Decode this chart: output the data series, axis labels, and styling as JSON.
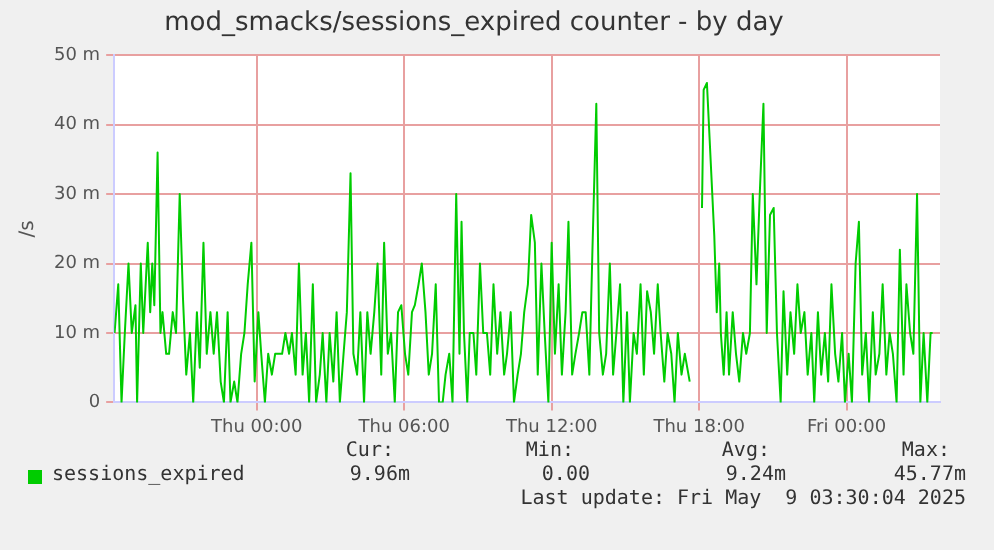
{
  "chart_data": {
    "type": "line",
    "title": "mod_smacks/sessions_expired counter - by day",
    "ylabel": "/s",
    "x": [
      "2025-05-07T18:13",
      "2025-05-07T18:22",
      "2025-05-07T18:30",
      "2025-05-07T18:38",
      "2025-05-07T18:47",
      "2025-05-07T18:55",
      "2025-05-07T19:04",
      "2025-05-07T19:08",
      "2025-05-07T19:17",
      "2025-05-07T19:23",
      "2025-05-07T19:34",
      "2025-05-07T19:40",
      "2025-05-07T19:45",
      "2025-05-07T19:50",
      "2025-05-07T19:58",
      "2025-05-07T20:05",
      "2025-05-07T20:10",
      "2025-05-07T20:19",
      "2025-05-07T20:26",
      "2025-05-07T20:35",
      "2025-05-07T20:43",
      "2025-05-07T20:52",
      "2025-05-07T21:00",
      "2025-05-07T21:08",
      "2025-05-07T21:17",
      "2025-05-07T21:25",
      "2025-05-07T21:34",
      "2025-05-07T21:41",
      "2025-05-07T21:50",
      "2025-05-07T21:58",
      "2025-05-07T22:07",
      "2025-05-07T22:15",
      "2025-05-07T22:23",
      "2025-05-07T22:32",
      "2025-05-07T22:40",
      "2025-05-07T22:49",
      "2025-05-07T22:56",
      "2025-05-07T23:05",
      "2025-05-07T23:13",
      "2025-05-07T23:22",
      "2025-05-07T23:30",
      "2025-05-07T23:38",
      "2025-05-07T23:47",
      "2025-05-07T23:55",
      "2025-05-08T00:04",
      "2025-05-08T00:11",
      "2025-05-08T00:20",
      "2025-05-08T00:28",
      "2025-05-08T00:37",
      "2025-05-08T00:45",
      "2025-05-08T00:53",
      "2025-05-08T01:02",
      "2025-05-08T01:10",
      "2025-05-08T01:19",
      "2025-05-08T01:26",
      "2025-05-08T01:35",
      "2025-05-08T01:43",
      "2025-05-08T01:52",
      "2025-05-08T02:00",
      "2025-05-08T02:08",
      "2025-05-08T02:17",
      "2025-05-08T02:25",
      "2025-05-08T02:34",
      "2025-05-08T02:41",
      "2025-05-08T02:50",
      "2025-05-08T02:58",
      "2025-05-08T03:07",
      "2025-05-08T03:15",
      "2025-05-08T03:23",
      "2025-05-08T03:32",
      "2025-05-08T03:40",
      "2025-05-08T03:49",
      "2025-05-08T03:56",
      "2025-05-08T04:05",
      "2025-05-08T04:13",
      "2025-05-08T04:22",
      "2025-05-08T04:30",
      "2025-05-08T04:38",
      "2025-05-08T04:47",
      "2025-05-08T04:55",
      "2025-05-08T05:04",
      "2025-05-08T05:11",
      "2025-05-08T05:20",
      "2025-05-08T05:28",
      "2025-05-08T05:37",
      "2025-05-08T05:45",
      "2025-05-08T05:53",
      "2025-05-08T06:02",
      "2025-05-08T06:10",
      "2025-05-08T06:19",
      "2025-05-08T06:26",
      "2025-05-08T06:35",
      "2025-05-08T06:43",
      "2025-05-08T06:52",
      "2025-05-08T07:00",
      "2025-05-08T07:08",
      "2025-05-08T07:17",
      "2025-05-08T07:25",
      "2025-05-08T07:34",
      "2025-05-08T07:41",
      "2025-05-08T07:50",
      "2025-05-08T07:58",
      "2025-05-08T08:07",
      "2025-05-08T08:15",
      "2025-05-08T08:20",
      "2025-05-08T08:26",
      "2025-05-08T08:34",
      "2025-05-08T08:40",
      "2025-05-08T08:49",
      "2025-05-08T08:56",
      "2025-05-08T09:05",
      "2025-05-08T09:13",
      "2025-05-08T09:22",
      "2025-05-08T09:30",
      "2025-05-08T09:38",
      "2025-05-08T09:47",
      "2025-05-08T09:55",
      "2025-05-08T10:04",
      "2025-05-08T10:11",
      "2025-05-08T10:20",
      "2025-05-08T10:28",
      "2025-05-08T10:37",
      "2025-05-08T10:45",
      "2025-05-08T10:53",
      "2025-05-08T11:02",
      "2025-05-08T11:10",
      "2025-05-08T11:19",
      "2025-05-08T11:26",
      "2025-05-08T11:35",
      "2025-05-08T11:43",
      "2025-05-08T11:52",
      "2025-05-08T12:00",
      "2025-05-08T12:08",
      "2025-05-08T12:17",
      "2025-05-08T12:25",
      "2025-05-08T12:34",
      "2025-05-08T12:41",
      "2025-05-08T12:50",
      "2025-05-08T12:58",
      "2025-05-08T13:07",
      "2025-05-08T13:15",
      "2025-05-08T13:23",
      "2025-05-08T13:32",
      "2025-05-08T13:40",
      "2025-05-08T13:49",
      "2025-05-08T13:56",
      "2025-05-08T14:05",
      "2025-05-08T14:13",
      "2025-05-08T14:22",
      "2025-05-08T14:30",
      "2025-05-08T14:38",
      "2025-05-08T14:47",
      "2025-05-08T14:55",
      "2025-05-08T15:04",
      "2025-05-08T15:11",
      "2025-05-08T15:20",
      "2025-05-08T15:28",
      "2025-05-08T15:37",
      "2025-05-08T15:45",
      "2025-05-08T15:53",
      "2025-05-08T16:02",
      "2025-05-08T16:10",
      "2025-05-08T16:19",
      "2025-05-08T16:26",
      "2025-05-08T16:35",
      "2025-05-08T16:43",
      "2025-05-08T16:52",
      "2025-05-08T17:00",
      "2025-05-08T17:08",
      "2025-05-08T17:17",
      "2025-05-08T17:25",
      "2025-05-08T17:37",
      "2025-05-08T17:54",
      "2025-05-08T18:07",
      "2025-05-08T18:11",
      "2025-05-08T18:19",
      "2025-05-08T18:37",
      "2025-05-08T18:43",
      "2025-05-08T18:49",
      "2025-05-08T18:53",
      "2025-05-08T19:00",
      "2025-05-08T19:07",
      "2025-05-08T19:13",
      "2025-05-08T19:22",
      "2025-05-08T19:30",
      "2025-05-08T19:38",
      "2025-05-08T19:47",
      "2025-05-08T19:55",
      "2025-05-08T20:04",
      "2025-05-08T20:11",
      "2025-05-08T20:20",
      "2025-05-08T20:28",
      "2025-05-08T20:37",
      "2025-05-08T20:45",
      "2025-05-08T20:53",
      "2025-05-08T21:02",
      "2025-05-08T21:10",
      "2025-05-08T21:19",
      "2025-05-08T21:26",
      "2025-05-08T21:35",
      "2025-05-08T21:43",
      "2025-05-08T21:52",
      "2025-05-08T22:00",
      "2025-05-08T22:08",
      "2025-05-08T22:17",
      "2025-05-08T22:25",
      "2025-05-08T22:34",
      "2025-05-08T22:41",
      "2025-05-08T22:50",
      "2025-05-08T22:58",
      "2025-05-08T23:07",
      "2025-05-08T23:15",
      "2025-05-08T23:23",
      "2025-05-08T23:32",
      "2025-05-08T23:40",
      "2025-05-08T23:49",
      "2025-05-08T23:56",
      "2025-05-09T00:05",
      "2025-05-09T00:13",
      "2025-05-09T00:22",
      "2025-05-09T00:30",
      "2025-05-09T00:38",
      "2025-05-09T00:47",
      "2025-05-09T00:55",
      "2025-05-09T01:04",
      "2025-05-09T01:11",
      "2025-05-09T01:20",
      "2025-05-09T01:28",
      "2025-05-09T01:37",
      "2025-05-09T01:45",
      "2025-05-09T01:53",
      "2025-05-09T02:02",
      "2025-05-09T02:10",
      "2025-05-09T02:19",
      "2025-05-09T02:26",
      "2025-05-09T02:35",
      "2025-05-09T02:43",
      "2025-05-09T02:52",
      "2025-05-09T03:00",
      "2025-05-09T03:08",
      "2025-05-09T03:17",
      "2025-05-09T03:25",
      "2025-05-09T03:30"
    ],
    "series": [
      {
        "name": "sessions_expired",
        "color": "#00cc00",
        "values": [
          10,
          17,
          0,
          10,
          20,
          10,
          14,
          0,
          20,
          10,
          23,
          13,
          20,
          14,
          36,
          10,
          13,
          7,
          7,
          13,
          10,
          30,
          15,
          4,
          10,
          0,
          13,
          5,
          23,
          7,
          13,
          7,
          13,
          3,
          0,
          13,
          0,
          3,
          0,
          7,
          10,
          17,
          23,
          3,
          13,
          7,
          0,
          7,
          4,
          7,
          7,
          7,
          10,
          7,
          10,
          4,
          20,
          4,
          10,
          0,
          17,
          0,
          4,
          10,
          0,
          10,
          3,
          13,
          0,
          7,
          13,
          33,
          7,
          4,
          13,
          0,
          13,
          7,
          13,
          20,
          4,
          23,
          7,
          10,
          0,
          13,
          14,
          7,
          4,
          13,
          14,
          17,
          20,
          13,
          4,
          7,
          17,
          0,
          0,
          4,
          7,
          0,
          30,
          7,
          26,
          10,
          0,
          10,
          10,
          4,
          20,
          10,
          10,
          4,
          17,
          7,
          13,
          4,
          7,
          13,
          0,
          4,
          7,
          13,
          17,
          27,
          23,
          4,
          20,
          10,
          0,
          23,
          7,
          17,
          4,
          13,
          26,
          4,
          7,
          10,
          13,
          13,
          4,
          23,
          43,
          10,
          4,
          7,
          20,
          4,
          10,
          17,
          0,
          13,
          0,
          10,
          7,
          17,
          4,
          16,
          13,
          7,
          17,
          10,
          3,
          10,
          7,
          0,
          10,
          4,
          7,
          3,
          null,
          28,
          45,
          46,
          24,
          13,
          20,
          10,
          4,
          13,
          4,
          13,
          7,
          3,
          10,
          7,
          10,
          30,
          17,
          30,
          43,
          10,
          27,
          28,
          10,
          0,
          16,
          4,
          13,
          7,
          17,
          10,
          13,
          4,
          10,
          0,
          13,
          4,
          10,
          3,
          17,
          7,
          3,
          10,
          0,
          7,
          0,
          20,
          26,
          4,
          10,
          0,
          13,
          4,
          7,
          17,
          4,
          10,
          7,
          0,
          22,
          4,
          17,
          10,
          7,
          30,
          0,
          10,
          0,
          10,
          10
        ]
      }
    ],
    "xlim": [
      "2025-05-07T18:12",
      "2025-05-09T03:48"
    ],
    "xticks": [
      {
        "value": "2025-05-08T00:00",
        "label": "Thu 00:00"
      },
      {
        "value": "2025-05-08T06:00",
        "label": "Thu 06:00"
      },
      {
        "value": "2025-05-08T12:00",
        "label": "Thu 12:00"
      },
      {
        "value": "2025-05-08T18:00",
        "label": "Thu 18:00"
      },
      {
        "value": "2025-05-09T00:00",
        "label": "Fri 00:00"
      }
    ],
    "ylim": [
      0,
      50
    ],
    "yticks": [
      0,
      {
        "value": 10,
        "label": "10 m"
      },
      {
        "value": 20,
        "label": "20 m"
      },
      {
        "value": 30,
        "label": "30 m"
      },
      {
        "value": 40,
        "label": "40 m"
      },
      {
        "value": 50,
        "label": "50 m"
      }
    ],
    "grid": true,
    "legend": "bottom",
    "marker": "none",
    "line_style": "solid",
    "annotations": [
      "Cur:",
      "Min:",
      "Avg:",
      "Max:",
      "9.96m",
      "0.00",
      "9.24m",
      "45.77m",
      "Last update: Fri May  9 03:30:04 2025"
    ]
  }
}
